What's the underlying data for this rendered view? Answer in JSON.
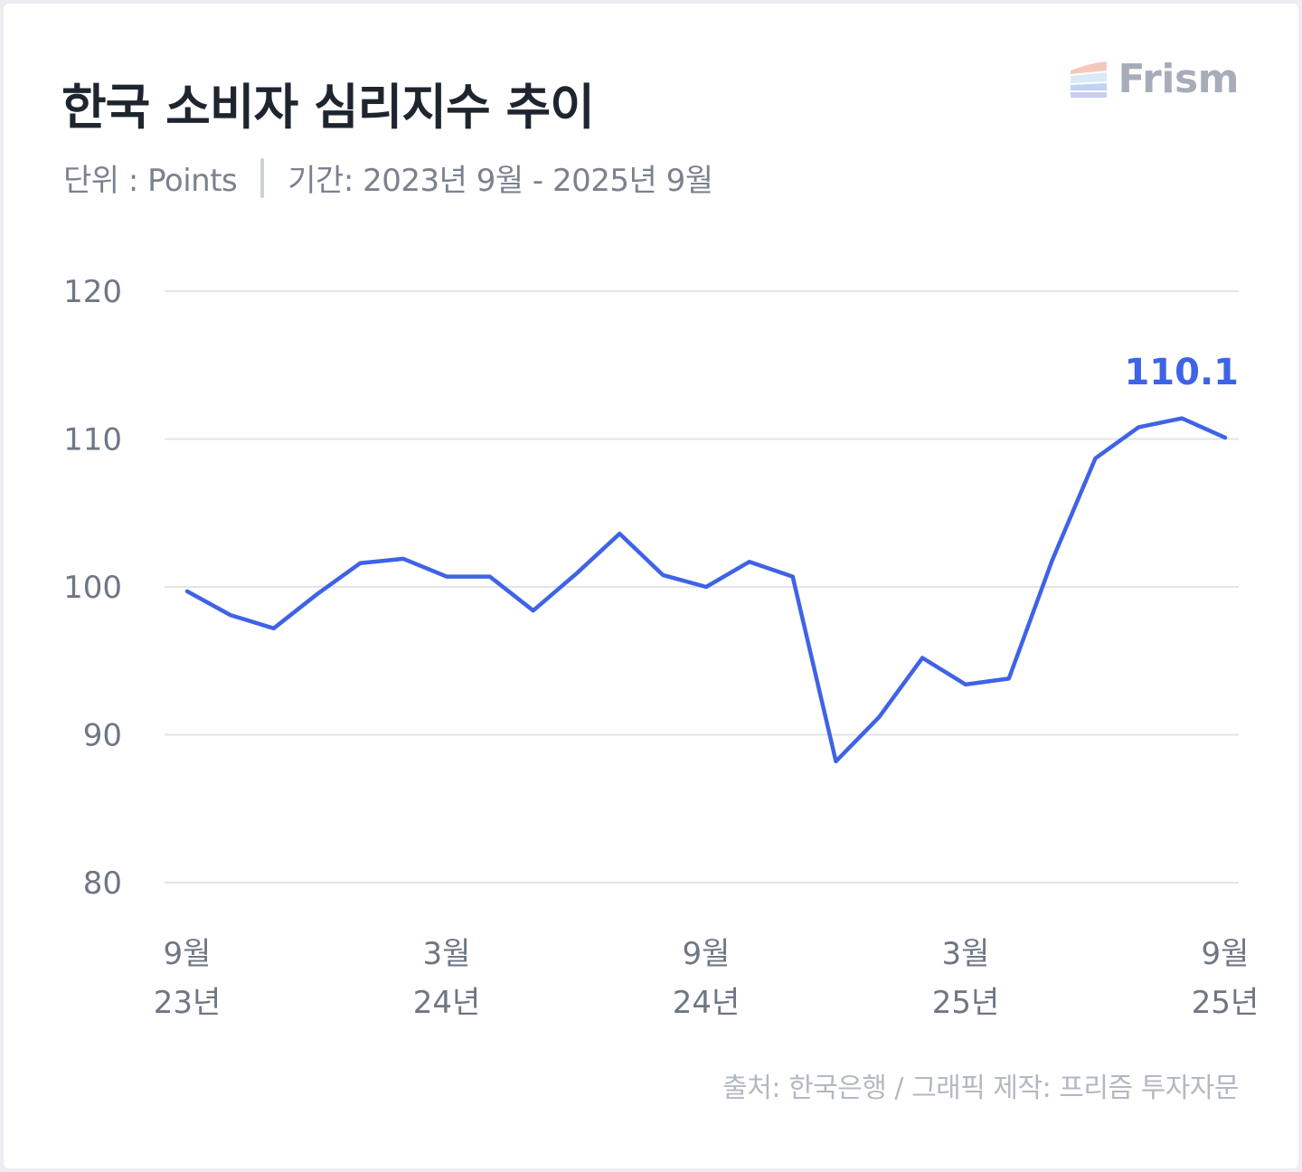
{
  "header": {
    "title": "한국 소비자 심리지수 추이",
    "unit_label": "단위 : Points",
    "period_label": "기간: 2023년 9월 - 2025년 9월"
  },
  "brand": {
    "name": "Frism",
    "icon": "frism-logo-icon"
  },
  "footer": {
    "source": "출처: 한국은행 / 그래픽 제작: 프리즘 투자자문"
  },
  "colors": {
    "line": "#3f63e6",
    "grid": "#e1e4e9",
    "axis_text": "#6f7684",
    "title": "#1e252e"
  },
  "chart_data": {
    "type": "line",
    "title": "한국 소비자 심리지수 추이",
    "xlabel": "",
    "ylabel": "",
    "ylim": [
      80,
      120
    ],
    "yticks": [
      120,
      110,
      100,
      90,
      80
    ],
    "grid": true,
    "x": [
      "2023-09",
      "2023-10",
      "2023-11",
      "2023-12",
      "2024-01",
      "2024-02",
      "2024-03",
      "2024-04",
      "2024-05",
      "2024-06",
      "2024-07",
      "2024-08",
      "2024-09",
      "2024-10",
      "2024-11",
      "2024-12",
      "2025-01",
      "2025-02",
      "2025-03",
      "2025-04",
      "2025-05",
      "2025-06",
      "2025-07",
      "2025-08",
      "2025-09"
    ],
    "x_ticks": [
      {
        "index": 0,
        "month": "9월",
        "year": "23년"
      },
      {
        "index": 6,
        "month": "3월",
        "year": "24년"
      },
      {
        "index": 12,
        "month": "9월",
        "year": "24년"
      },
      {
        "index": 18,
        "month": "3월",
        "year": "25년"
      },
      {
        "index": 24,
        "month": "9월",
        "year": "25년"
      }
    ],
    "series": [
      {
        "values": [
          99.7,
          98.1,
          97.2,
          99.5,
          101.6,
          101.9,
          100.7,
          100.7,
          98.4,
          100.9,
          103.6,
          100.8,
          100.0,
          101.7,
          100.7,
          88.2,
          91.2,
          95.2,
          93.4,
          93.8,
          101.8,
          108.7,
          110.8,
          111.4,
          110.1
        ]
      }
    ],
    "annotation": {
      "index": 24,
      "label": "110.1"
    }
  }
}
